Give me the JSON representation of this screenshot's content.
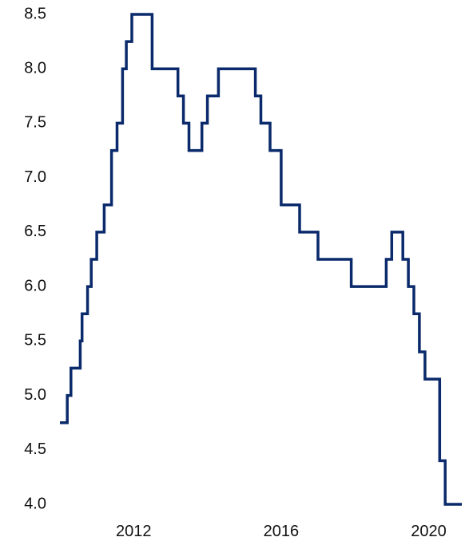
{
  "chart_data": {
    "type": "line",
    "step": true,
    "title": "",
    "xlabel": "",
    "ylabel": "",
    "xlim": [
      2010.0,
      2020.9
    ],
    "ylim": [
      4.0,
      8.5
    ],
    "yticks": [
      "4.0",
      "4.5",
      "5.0",
      "5.5",
      "6.0",
      "6.5",
      "7.0",
      "7.5",
      "8.0",
      "8.5"
    ],
    "xticks": [
      "2012",
      "2016",
      "2020"
    ],
    "grid": false,
    "legend": "none",
    "color": "#0a2a6b",
    "series": [
      {
        "x": [
          2010.0,
          2010.2,
          2010.3,
          2010.55,
          2010.6,
          2010.75,
          2010.85,
          2011.0,
          2011.2,
          2011.4,
          2011.55,
          2011.7,
          2011.8,
          2011.95,
          2012.1,
          2012.5,
          2013.2,
          2013.35,
          2013.5,
          2013.85,
          2014.0,
          2014.3,
          2015.3,
          2015.45,
          2015.7,
          2016.0,
          2016.5,
          2017.0,
          2017.9,
          2018.85,
          2019.0,
          2019.3,
          2019.45,
          2019.6,
          2019.75,
          2019.9,
          2020.3,
          2020.45,
          2020.9
        ],
        "y": [
          4.75,
          5.0,
          5.25,
          5.5,
          5.75,
          6.0,
          6.25,
          6.5,
          6.75,
          7.25,
          7.5,
          8.0,
          8.25,
          8.5,
          8.5,
          8.0,
          7.75,
          7.5,
          7.25,
          7.5,
          7.75,
          8.0,
          7.75,
          7.5,
          7.25,
          6.75,
          6.5,
          6.25,
          6.0,
          6.25,
          6.5,
          6.25,
          6.0,
          5.75,
          5.4,
          5.15,
          4.4,
          4.0,
          4.0
        ]
      }
    ]
  }
}
